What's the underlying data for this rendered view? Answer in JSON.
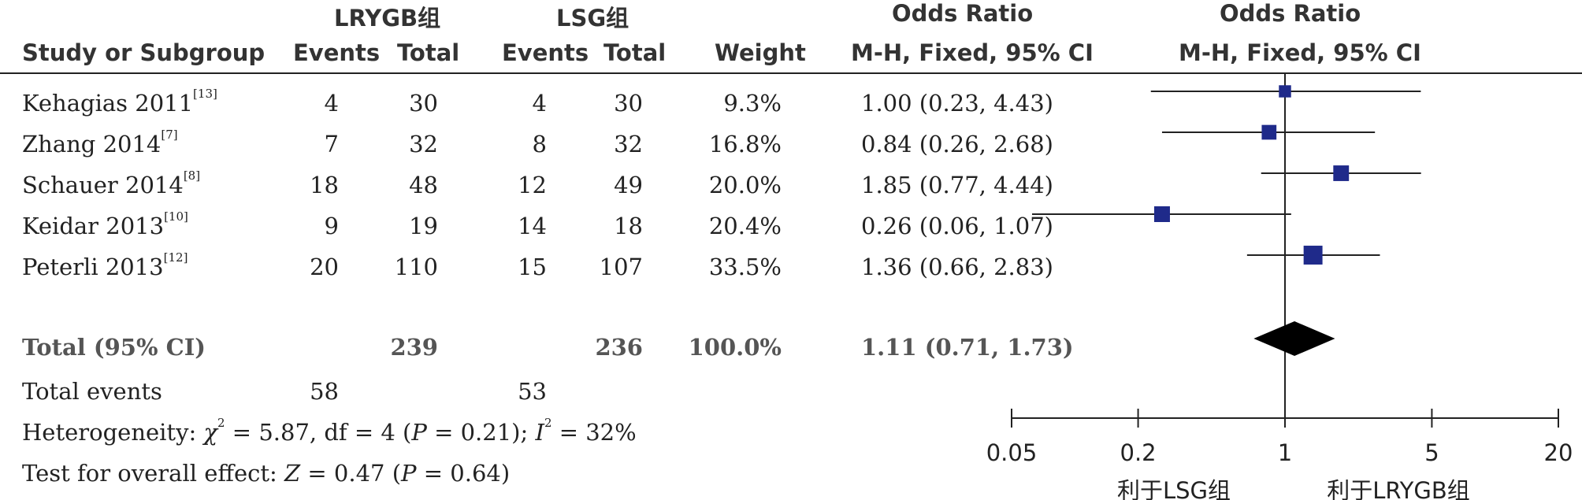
{
  "chart_data": {
    "type": "forest",
    "group1": "LRYGB组",
    "group2": "LSG组",
    "headers": {
      "study": "Study or Subgroup",
      "events": "Events",
      "total": "Total",
      "weight": "Weight",
      "or_title": "Odds Ratio",
      "or_method": "M-H, Fixed, 95% CI"
    },
    "studies": [
      {
        "name": "Kehagias 2011",
        "ref": "[13]",
        "e1": "4",
        "t1": "30",
        "e2": "4",
        "t2": "30",
        "weight": "9.3%",
        "or_text": "1.00 (0.23, 4.43)",
        "or": 1.0,
        "lo": 0.23,
        "hi": 4.43,
        "w": 9.3
      },
      {
        "name": "Zhang 2014",
        "ref": "[7]",
        "e1": "7",
        "t1": "32",
        "e2": "8",
        "t2": "32",
        "weight": "16.8%",
        "or_text": "0.84 (0.26, 2.68)",
        "or": 0.84,
        "lo": 0.26,
        "hi": 2.68,
        "w": 16.8
      },
      {
        "name": "Schauer 2014",
        "ref": "[8]",
        "e1": "18",
        "t1": "48",
        "e2": "12",
        "t2": "49",
        "weight": "20.0%",
        "or_text": "1.85 (0.77, 4.44)",
        "or": 1.85,
        "lo": 0.77,
        "hi": 4.44,
        "w": 20.0
      },
      {
        "name": "Keidar 2013",
        "ref": "[10]",
        "e1": "9",
        "t1": "19",
        "e2": "14",
        "t2": "18",
        "weight": "20.4%",
        "or_text": "0.26 (0.06, 1.07)",
        "or": 0.26,
        "lo": 0.06,
        "hi": 1.07,
        "w": 20.4
      },
      {
        "name": "Peterli 2013",
        "ref": "[12]",
        "e1": "20",
        "t1": "110",
        "e2": "15",
        "t2": "107",
        "weight": "33.5%",
        "or_text": "1.36 (0.66, 2.83)",
        "or": 1.36,
        "lo": 0.66,
        "hi": 2.83,
        "w": 33.5
      }
    ],
    "total": {
      "label": "Total (95% CI)",
      "t1": "239",
      "t2": "236",
      "weight": "100.0%",
      "or_text": "1.11 (0.71, 1.73)",
      "or": 1.11,
      "lo": 0.71,
      "hi": 1.73
    },
    "total_events": {
      "label": "Total events",
      "e1": "58",
      "e2": "53"
    },
    "heterogeneity": {
      "prefix": "Heterogeneity: ",
      "chi": "χ",
      "chi_text": " = 5.87, df = 4 (",
      "p": "P",
      "p_text": " = 0.21); ",
      "i": "I",
      "i_text": " = 32%"
    },
    "overall": {
      "prefix": "Test for overall effect: ",
      "z": "Z",
      "z_text": " = 0.47 (",
      "p": "P",
      "p_text": " = 0.64)"
    },
    "x_scale": "log",
    "xlim": [
      0.05,
      20
    ],
    "xticks": [
      "0.05",
      "0.2",
      "1",
      "5",
      "20"
    ],
    "favours_left": "利于LSG组",
    "favours_right": "利于LRYGB组",
    "colors": {
      "marker": "#1f2a8a",
      "diamond": "#000000"
    }
  }
}
